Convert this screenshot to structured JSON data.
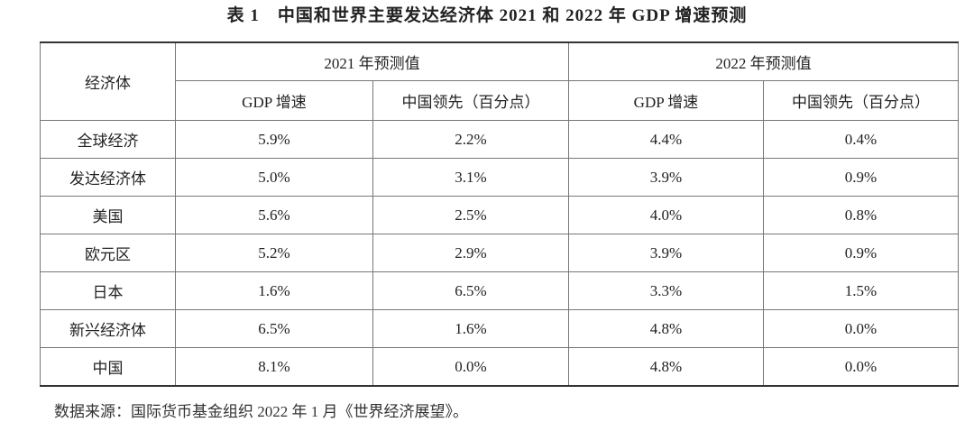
{
  "title": "表 1　中国和世界主要发达经济体 2021 和 2022 年 GDP 增速预测",
  "table": {
    "corner": "经济体",
    "groups": [
      "2021 年预测值",
      "2022 年预测值"
    ],
    "subheaders": [
      "GDP 增速",
      "中国领先（百分点）",
      "GDP 增速",
      "中国领先（百分点）"
    ],
    "rows": [
      [
        "全球经济",
        "5.9%",
        "2.2%",
        "4.4%",
        "0.4%"
      ],
      [
        "发达经济体",
        "5.0%",
        "3.1%",
        "3.9%",
        "0.9%"
      ],
      [
        "美国",
        "5.6%",
        "2.5%",
        "4.0%",
        "0.8%"
      ],
      [
        "欧元区",
        "5.2%",
        "2.9%",
        "3.9%",
        "0.9%"
      ],
      [
        "日本",
        "1.6%",
        "6.5%",
        "3.3%",
        "1.5%"
      ],
      [
        "新兴经济体",
        "6.5%",
        "1.6%",
        "4.8%",
        "0.0%"
      ],
      [
        "中国",
        "8.1%",
        "0.0%",
        "4.8%",
        "0.0%"
      ]
    ]
  },
  "source": "数据来源：国际货币基金组织 2022 年 1 月《世界经济展望》。"
}
